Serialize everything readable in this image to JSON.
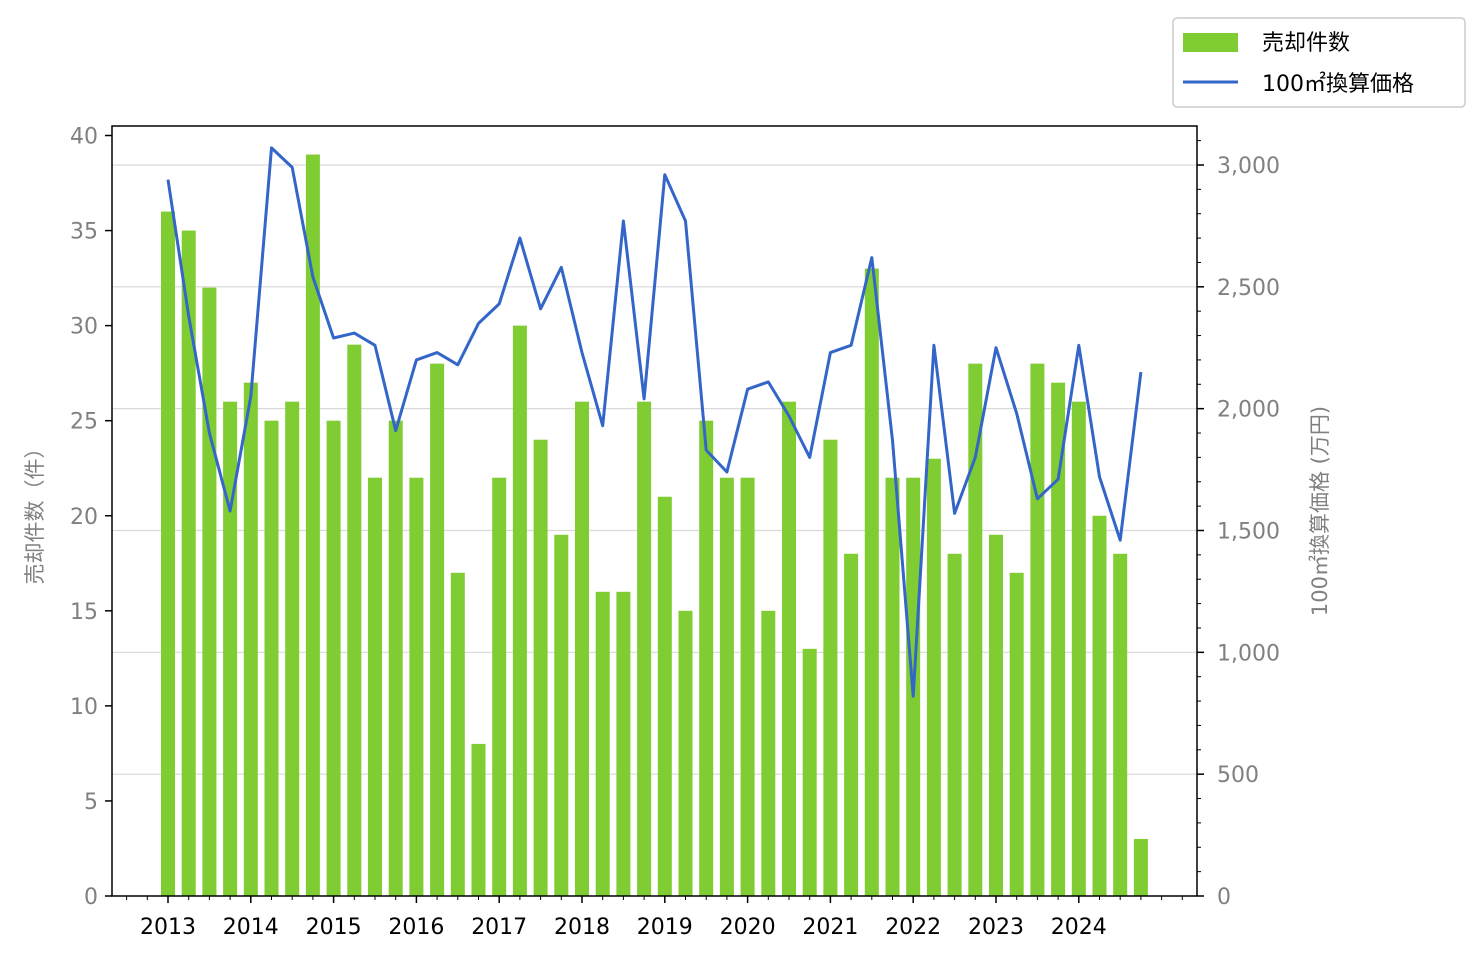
{
  "chart_data": {
    "type": "bar",
    "title": "",
    "x_tick_labels": [
      "2013",
      "2014",
      "2015",
      "2016",
      "2017",
      "2018",
      "2019",
      "2020",
      "2021",
      "2022",
      "2023",
      "2024"
    ],
    "categories": [
      "2013Q1",
      "2013Q2",
      "2013Q3",
      "2013Q4",
      "2014Q1",
      "2014Q2",
      "2014Q3",
      "2014Q4",
      "2015Q1",
      "2015Q2",
      "2015Q3",
      "2015Q4",
      "2016Q1",
      "2016Q2",
      "2016Q3",
      "2016Q4",
      "2017Q1",
      "2017Q2",
      "2017Q3",
      "2017Q4",
      "2018Q1",
      "2018Q2",
      "2018Q3",
      "2018Q4",
      "2019Q1",
      "2019Q2",
      "2019Q3",
      "2019Q4",
      "2020Q1",
      "2020Q2",
      "2020Q3",
      "2020Q4",
      "2021Q1",
      "2021Q2",
      "2021Q3",
      "2021Q4",
      "2022Q1",
      "2022Q2",
      "2022Q3",
      "2022Q4",
      "2023Q1",
      "2023Q2",
      "2023Q3",
      "2023Q4",
      "2024Q1",
      "2024Q2",
      "2024Q3",
      "2024Q4"
    ],
    "series": [
      {
        "name": "売却件数",
        "type": "bar",
        "axis": "left",
        "color": "#7fcc33",
        "values": [
          36,
          35,
          32,
          26,
          27,
          25,
          26,
          39,
          25,
          29,
          22,
          25,
          22,
          28,
          17,
          8,
          22,
          30,
          24,
          19,
          26,
          16,
          16,
          26,
          21,
          15,
          25,
          22,
          22,
          15,
          26,
          13,
          24,
          18,
          33,
          22,
          22,
          23,
          18,
          28,
          19,
          17,
          28,
          27,
          26,
          20,
          18,
          3
        ]
      },
      {
        "name": "100㎡換算価格",
        "type": "line",
        "axis": "right",
        "color": "#3465c8",
        "values": [
          2940,
          2380,
          1900,
          1580,
          2050,
          3070,
          2990,
          2540,
          2290,
          2310,
          2260,
          1910,
          2200,
          2230,
          2180,
          2350,
          2430,
          2700,
          2410,
          2580,
          2230,
          1930,
          2770,
          2040,
          2960,
          2770,
          1830,
          1740,
          2080,
          2110,
          1970,
          1800,
          2230,
          2260,
          2620,
          1870,
          820,
          2260,
          1570,
          1800,
          2250,
          1980,
          1630,
          1710,
          2260,
          1720,
          1460,
          2150
        ]
      }
    ],
    "ylabel_left": "売却件数（件）",
    "ylabel_right": "100㎡換算価格 (万円)",
    "ylim_left": [
      0,
      40.5
    ],
    "ylim_right": [
      0,
      3160
    ],
    "yticks_left": [
      "0",
      "5",
      "10",
      "15",
      "20",
      "25",
      "30",
      "35",
      "40"
    ],
    "yticks_right": [
      "0",
      "500",
      "1,000",
      "1,500",
      "2,000",
      "2,500",
      "3,000"
    ],
    "grid": "horizontal (right axis)",
    "legend_position": "top-right, outside plot"
  }
}
